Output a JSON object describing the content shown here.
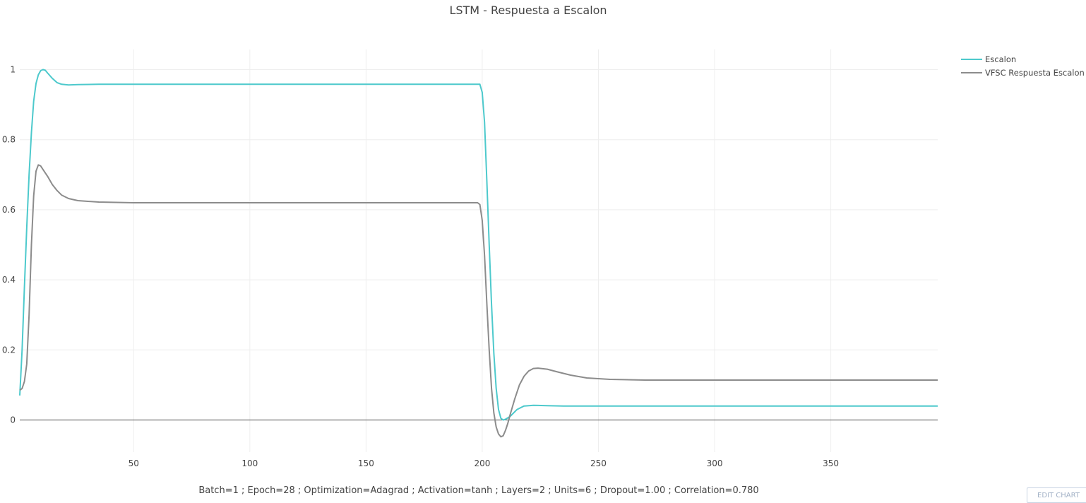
{
  "chart_data": {
    "type": "line",
    "title": "LSTM - Respuesta a Escalon",
    "xlabel": "Batch=1 ; Epoch=28 ; Optimization=Adagrad ; Activation=tanh ; Layers=2 ; Units=6 ; Dropout=1.00 ; Correlation=0.780",
    "ylabel": "",
    "xlim": [
      1,
      396
    ],
    "ylim": [
      -0.1,
      1.05
    ],
    "x_ticks": [
      "50",
      "100",
      "150",
      "200",
      "250",
      "300",
      "350"
    ],
    "y_ticks": [
      "0",
      "0.2",
      "0.4",
      "0.6",
      "0.8",
      "1"
    ],
    "grid": true,
    "legend_position": "top-right",
    "series": [
      {
        "name": "Escalon",
        "color": "#4dc9cc",
        "points": [
          [
            1,
            0.07
          ],
          [
            2,
            0.2
          ],
          [
            3,
            0.38
          ],
          [
            4,
            0.55
          ],
          [
            5,
            0.7
          ],
          [
            6,
            0.82
          ],
          [
            7,
            0.91
          ],
          [
            8,
            0.96
          ],
          [
            9,
            0.985
          ],
          [
            10,
            0.997
          ],
          [
            11,
            1.0
          ],
          [
            12,
            0.998
          ],
          [
            13,
            0.99
          ],
          [
            15,
            0.975
          ],
          [
            17,
            0.963
          ],
          [
            19,
            0.958
          ],
          [
            22,
            0.956
          ],
          [
            26,
            0.957
          ],
          [
            35,
            0.958
          ],
          [
            100,
            0.958
          ],
          [
            150,
            0.958
          ],
          [
            199,
            0.958
          ],
          [
            200,
            0.935
          ],
          [
            201,
            0.85
          ],
          [
            202,
            0.68
          ],
          [
            203,
            0.5
          ],
          [
            204,
            0.33
          ],
          [
            205,
            0.19
          ],
          [
            206,
            0.09
          ],
          [
            207,
            0.03
          ],
          [
            208,
            0.005
          ],
          [
            209,
            0.0
          ],
          [
            210,
            0.002
          ],
          [
            212,
            0.01
          ],
          [
            215,
            0.03
          ],
          [
            218,
            0.04
          ],
          [
            222,
            0.042
          ],
          [
            228,
            0.041
          ],
          [
            235,
            0.04
          ],
          [
            300,
            0.04
          ],
          [
            396,
            0.04
          ]
        ]
      },
      {
        "name": "VFSC Respuesta Escalon",
        "color": "#8c8c8c",
        "points": [
          [
            1,
            0.085
          ],
          [
            2,
            0.09
          ],
          [
            3,
            0.11
          ],
          [
            4,
            0.16
          ],
          [
            5,
            0.3
          ],
          [
            6,
            0.5
          ],
          [
            7,
            0.64
          ],
          [
            8,
            0.71
          ],
          [
            9,
            0.728
          ],
          [
            10,
            0.725
          ],
          [
            11,
            0.715
          ],
          [
            13,
            0.695
          ],
          [
            15,
            0.672
          ],
          [
            17,
            0.655
          ],
          [
            19,
            0.642
          ],
          [
            22,
            0.632
          ],
          [
            26,
            0.626
          ],
          [
            35,
            0.622
          ],
          [
            50,
            0.62
          ],
          [
            100,
            0.62
          ],
          [
            198,
            0.62
          ],
          [
            199,
            0.615
          ],
          [
            200,
            0.57
          ],
          [
            201,
            0.47
          ],
          [
            202,
            0.33
          ],
          [
            203,
            0.2
          ],
          [
            204,
            0.09
          ],
          [
            205,
            0.02
          ],
          [
            206,
            -0.02
          ],
          [
            207,
            -0.04
          ],
          [
            208,
            -0.048
          ],
          [
            209,
            -0.045
          ],
          [
            210,
            -0.03
          ],
          [
            211,
            -0.01
          ],
          [
            212,
            0.015
          ],
          [
            214,
            0.06
          ],
          [
            216,
            0.1
          ],
          [
            218,
            0.125
          ],
          [
            220,
            0.14
          ],
          [
            222,
            0.147
          ],
          [
            224,
            0.148
          ],
          [
            228,
            0.145
          ],
          [
            232,
            0.138
          ],
          [
            238,
            0.128
          ],
          [
            245,
            0.12
          ],
          [
            255,
            0.116
          ],
          [
            270,
            0.114
          ],
          [
            300,
            0.114
          ],
          [
            396,
            0.114
          ]
        ]
      }
    ]
  },
  "toolbar": {
    "edit_label": "EDIT CHART"
  }
}
